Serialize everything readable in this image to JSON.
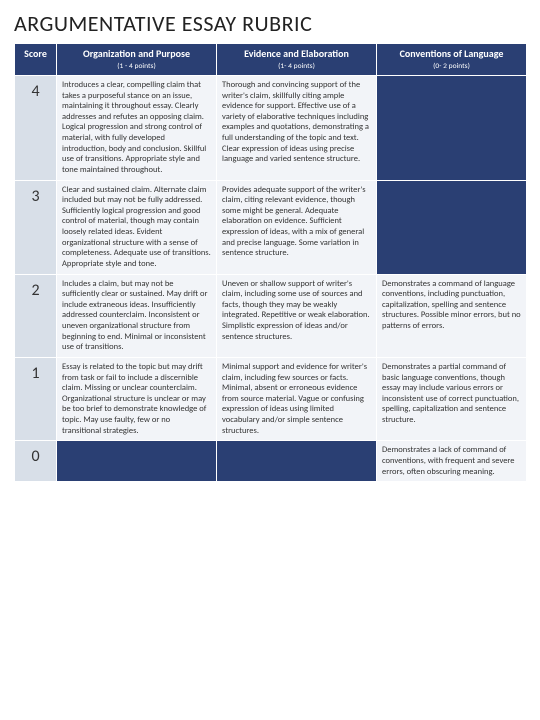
{
  "title": "ARGUMENTATIVE ESSAY RUBRIC",
  "colors": {
    "header_bg": "#2a3f73",
    "header_text": "#ffffff",
    "score_bg": "#d8dfe8",
    "cell_light": "#f2f4f8",
    "cell_navy": "#2a3f73",
    "border": "#ffffff"
  },
  "columns": {
    "score": {
      "label": "Score"
    },
    "org": {
      "label": "Organization and Purpose",
      "points": "(1 - 4 points)"
    },
    "ev": {
      "label": "Evidence and Elaboration",
      "points": "(1- 4 points)"
    },
    "conv": {
      "label": "Conventions of Language",
      "points": "(0- 2 points)"
    }
  },
  "rows": [
    {
      "score": "4",
      "org": "Introduces a clear, compelling claim that takes a purposeful stance on an issue, maintaining it throughout essay. Clearly addresses and refutes an opposing claim. Logical progression and strong control of material, with fully developed introduction, body and conclusion. Skillful use of transitions. Appropriate style and tone maintained throughout.",
      "ev": "Thorough and convincing support of the writer's claim, skillfully citing ample evidence for support. Effective use of a variety of elaborative techniques including examples and quotations, demonstrating a full understanding of the topic and text. Clear expression of ideas using precise language and varied sentence structure.",
      "conv": "",
      "conv_filled": true
    },
    {
      "score": "3",
      "org": "Clear and sustained claim. Alternate claim included but may not be fully addressed. Sufficiently logical progression and good control of material, though may contain loosely related ideas. Evident organizational structure with a sense of completeness. Adequate use of transitions. Appropriate style and tone.",
      "ev": "Provides adequate support of the writer's claim, citing relevant evidence, though some might be general. Adequate elaboration on evidence. Sufficient expression of ideas, with a mix of general and precise language. Some variation in sentence structure.",
      "conv": "",
      "conv_filled": true
    },
    {
      "score": "2",
      "org": "Includes a claim, but may not be sufficiently clear or sustained. May drift or include extraneous ideas. Insufficiently addressed counterclaim. Inconsistent or uneven organizational structure from beginning to end. Minimal or inconsistent use of transitions.",
      "ev": "Uneven or shallow support of writer's claim, including some use of sources and facts, though they may be weakly integrated. Repetitive or weak elaboration. Simplistic expression of ideas and/or sentence structures.",
      "conv": "Demonstrates a command of language conventions, including punctuation, capitalization, spelling and sentence structures. Possible minor errors, but no patterns of errors.",
      "conv_filled": false
    },
    {
      "score": "1",
      "org": "Essay is related to the topic but may drift from task or fail to include a discernible claim. Missing or unclear counterclaim. Organizational structure is unclear or may be too brief to demonstrate knowledge of topic. May use faulty, few or no transitional strategies.",
      "ev": "Minimal support and evidence for writer's claim, including few sources or facts. Minimal, absent or erroneous evidence from source material. Vague or confusing expression of ideas using limited vocabulary and/or simple sentence structures.",
      "conv": "Demonstrates a partial command of basic language conventions, though essay may include various errors or inconsistent use of correct punctuation, spelling, capitalization and sentence structure.",
      "conv_filled": false
    },
    {
      "score": "0",
      "org": "",
      "ev": "",
      "conv": "Demonstrates a lack of command of conventions, with frequent and severe errors, often obscuring meaning.",
      "org_filled": true,
      "ev_filled": true,
      "conv_filled": false
    }
  ]
}
